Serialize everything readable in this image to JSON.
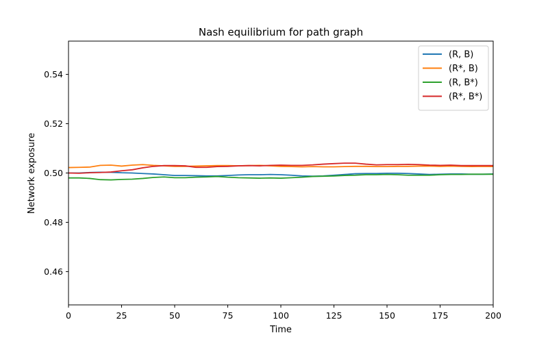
{
  "chart_data": {
    "type": "line",
    "title": "Nash equilibrium for path graph",
    "xlabel": "Time",
    "ylabel": "Network exposure",
    "xlim": [
      0,
      200
    ],
    "ylim": [
      0.4465,
      0.5535
    ],
    "xticks": [
      0,
      25,
      50,
      75,
      100,
      125,
      150,
      175,
      200
    ],
    "yticks": [
      0.46,
      0.48,
      0.5,
      0.52,
      0.54
    ],
    "xtick_labels": [
      "0",
      "25",
      "50",
      "75",
      "100",
      "125",
      "150",
      "175",
      "200"
    ],
    "ytick_labels": [
      "0.46",
      "0.48",
      "0.50",
      "0.52",
      "0.54"
    ],
    "grid": false,
    "legend_position": "top-right",
    "x": [
      0,
      5,
      10,
      15,
      20,
      25,
      30,
      35,
      40,
      45,
      50,
      55,
      60,
      65,
      70,
      75,
      80,
      85,
      90,
      95,
      100,
      105,
      110,
      115,
      120,
      125,
      130,
      135,
      140,
      145,
      150,
      155,
      160,
      165,
      170,
      175,
      180,
      185,
      190,
      195,
      200
    ],
    "series": [
      {
        "name": "(R, B)",
        "color": "#1f77b4",
        "values": [
          0.5,
          0.5,
          0.5002,
          0.5003,
          0.5003,
          0.5001,
          0.5,
          0.4998,
          0.4996,
          0.4993,
          0.499,
          0.499,
          0.4989,
          0.4988,
          0.4988,
          0.499,
          0.4992,
          0.4993,
          0.4993,
          0.4994,
          0.4993,
          0.4991,
          0.4988,
          0.4987,
          0.4988,
          0.4991,
          0.4994,
          0.4997,
          0.4998,
          0.4998,
          0.4999,
          0.4999,
          0.4998,
          0.4996,
          0.4994,
          0.4995,
          0.4996,
          0.4996,
          0.4995,
          0.4995,
          0.4996
        ]
      },
      {
        "name": "(R*, B)",
        "color": "#ff7f0e",
        "values": [
          0.5022,
          0.5023,
          0.5024,
          0.5031,
          0.5032,
          0.5028,
          0.5032,
          0.5034,
          0.5031,
          0.5029,
          0.5027,
          0.5027,
          0.5028,
          0.5029,
          0.503,
          0.503,
          0.5029,
          0.503,
          0.5031,
          0.5029,
          0.5027,
          0.5026,
          0.5025,
          0.5026,
          0.5025,
          0.5025,
          0.5026,
          0.5027,
          0.5027,
          0.5026,
          0.5026,
          0.5027,
          0.5027,
          0.5028,
          0.5028,
          0.5027,
          0.5028,
          0.5027,
          0.5026,
          0.5027,
          0.5026
        ]
      },
      {
        "name": "(R, B*)",
        "color": "#2ca02c",
        "values": [
          0.498,
          0.498,
          0.4978,
          0.4973,
          0.4972,
          0.4974,
          0.4975,
          0.4978,
          0.4982,
          0.4984,
          0.4981,
          0.4981,
          0.4983,
          0.4984,
          0.4986,
          0.4983,
          0.4981,
          0.498,
          0.4979,
          0.498,
          0.4979,
          0.4981,
          0.4983,
          0.4986,
          0.4987,
          0.4988,
          0.499,
          0.4991,
          0.4993,
          0.4993,
          0.4994,
          0.4993,
          0.4991,
          0.4991,
          0.4991,
          0.4993,
          0.4994,
          0.4994,
          0.4995,
          0.4995,
          0.4995
        ]
      },
      {
        "name": "(R*, B*)",
        "color": "#d62728",
        "values": [
          0.5,
          0.4999,
          0.5001,
          0.5002,
          0.5004,
          0.5009,
          0.5013,
          0.5021,
          0.5027,
          0.503,
          0.503,
          0.5029,
          0.5023,
          0.5023,
          0.5026,
          0.5027,
          0.5029,
          0.503,
          0.5029,
          0.5031,
          0.5032,
          0.5031,
          0.5031,
          0.5033,
          0.5036,
          0.5038,
          0.504,
          0.504,
          0.5036,
          0.5033,
          0.5034,
          0.5034,
          0.5035,
          0.5034,
          0.5032,
          0.5031,
          0.5032,
          0.503,
          0.503,
          0.503,
          0.503
        ]
      }
    ]
  }
}
